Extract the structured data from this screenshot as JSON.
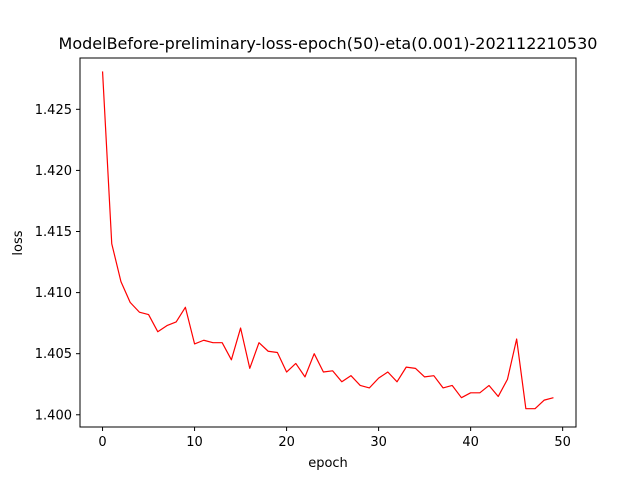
{
  "chart_data": {
    "type": "line",
    "title": "ModelBefore-preliminary-loss-epoch(50)-eta(0.001)-202112210530",
    "xlabel": "epoch",
    "ylabel": "loss",
    "xlim": [
      -2.45,
      51.45
    ],
    "ylim": [
      1.399,
      1.4292
    ],
    "xticks": [
      0,
      10,
      20,
      30,
      40,
      50
    ],
    "yticks": [
      1.4,
      1.405,
      1.41,
      1.415,
      1.42,
      1.425
    ],
    "xtick_labels": [
      "0",
      "10",
      "20",
      "30",
      "40",
      "50"
    ],
    "ytick_labels": [
      "1.400",
      "1.405",
      "1.410",
      "1.415",
      "1.420",
      "1.425"
    ],
    "grid": false,
    "line_color": "#ff0000",
    "series": [
      {
        "x": [
          0,
          1,
          2,
          3,
          4,
          5,
          6,
          7,
          8,
          9,
          10,
          11,
          12,
          13,
          14,
          15,
          16,
          17,
          18,
          19,
          20,
          21,
          22,
          23,
          24,
          25,
          26,
          27,
          28,
          29,
          30,
          31,
          32,
          33,
          34,
          35,
          36,
          37,
          38,
          39,
          40,
          41,
          42,
          43,
          44,
          45,
          46,
          47,
          48,
          49
        ],
        "y": [
          1.4281,
          1.414,
          1.4109,
          1.4092,
          1.4084,
          1.4082,
          1.4068,
          1.4073,
          1.4076,
          1.4088,
          1.4058,
          1.4061,
          1.4059,
          1.4059,
          1.4045,
          1.4071,
          1.4038,
          1.4059,
          1.4052,
          1.4051,
          1.4035,
          1.4042,
          1.4031,
          1.405,
          1.4035,
          1.4036,
          1.4027,
          1.4032,
          1.4024,
          1.4022,
          1.403,
          1.4035,
          1.4027,
          1.4039,
          1.4038,
          1.4031,
          1.4032,
          1.4022,
          1.4024,
          1.4014,
          1.4018,
          1.4018,
          1.4024,
          1.4015,
          1.4029,
          1.4062,
          1.4005,
          1.4005,
          1.4012,
          1.4014
        ]
      }
    ]
  }
}
